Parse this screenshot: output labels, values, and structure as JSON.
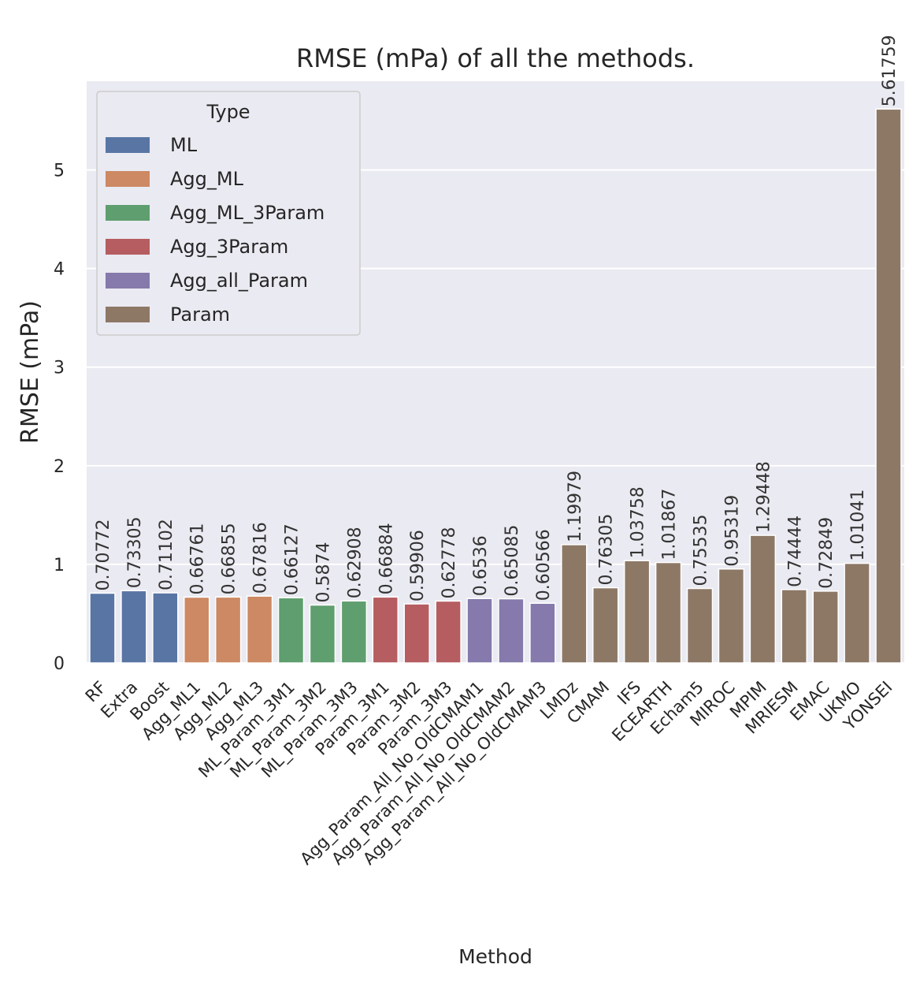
{
  "chart_data": {
    "type": "bar",
    "title": "RMSE (mPa) of all the methods.",
    "xlabel": "Method",
    "ylabel": "RMSE (mPa)",
    "ylim": [
      0,
      5.9
    ],
    "yticks": [
      0,
      1,
      2,
      3,
      4,
      5
    ],
    "grid": true,
    "legend": {
      "title": "Type",
      "placement": "top-left",
      "entries": [
        {
          "name": "ML",
          "color": "#5875a4"
        },
        {
          "name": "Agg_ML",
          "color": "#cc8963"
        },
        {
          "name": "Agg_ML_3Param",
          "color": "#5f9e6e"
        },
        {
          "name": "Agg_3Param",
          "color": "#b55d60"
        },
        {
          "name": "Agg_all_Param",
          "color": "#857aab"
        },
        {
          "name": "Param",
          "color": "#8d7866"
        }
      ]
    },
    "bars": [
      {
        "category": "RF",
        "value": 0.70772,
        "label": "0.70772",
        "type": "ML"
      },
      {
        "category": "Extra",
        "value": 0.73305,
        "label": "0.73305",
        "type": "ML"
      },
      {
        "category": "Boost",
        "value": 0.71102,
        "label": "0.71102",
        "type": "ML"
      },
      {
        "category": "Agg_ML1",
        "value": 0.66761,
        "label": "0.66761",
        "type": "Agg_ML"
      },
      {
        "category": "Agg_ML2",
        "value": 0.66855,
        "label": "0.66855",
        "type": "Agg_ML"
      },
      {
        "category": "Agg_ML3",
        "value": 0.67816,
        "label": "0.67816",
        "type": "Agg_ML"
      },
      {
        "category": "ML_Param_3M1",
        "value": 0.66127,
        "label": "0.66127",
        "type": "Agg_ML_3Param"
      },
      {
        "category": "ML_Param_3M2",
        "value": 0.5874,
        "label": "0.5874",
        "type": "Agg_ML_3Param"
      },
      {
        "category": "ML_Param_3M3",
        "value": 0.62908,
        "label": "0.62908",
        "type": "Agg_ML_3Param"
      },
      {
        "category": "Param_3M1",
        "value": 0.66884,
        "label": "0.66884",
        "type": "Agg_3Param"
      },
      {
        "category": "Param_3M2",
        "value": 0.59906,
        "label": "0.59906",
        "type": "Agg_3Param"
      },
      {
        "category": "Param_3M3",
        "value": 0.62778,
        "label": "0.62778",
        "type": "Agg_3Param"
      },
      {
        "category": "Agg_Param_All_No_OldCMAM1",
        "value": 0.6536,
        "label": "0.6536",
        "type": "Agg_all_Param"
      },
      {
        "category": "Agg_Param_All_No_OldCMAM2",
        "value": 0.65085,
        "label": "0.65085",
        "type": "Agg_all_Param"
      },
      {
        "category": "Agg_Param_All_No_OldCMAM3",
        "value": 0.60566,
        "label": "0.60566",
        "type": "Agg_all_Param"
      },
      {
        "category": "LMDz",
        "value": 1.19979,
        "label": "1.19979",
        "type": "Param"
      },
      {
        "category": "CMAM",
        "value": 0.76305,
        "label": "0.76305",
        "type": "Param"
      },
      {
        "category": "IFS",
        "value": 1.03758,
        "label": "1.03758",
        "type": "Param"
      },
      {
        "category": "ECEARTH",
        "value": 1.01867,
        "label": "1.01867",
        "type": "Param"
      },
      {
        "category": "Echam5",
        "value": 0.75535,
        "label": "0.75535",
        "type": "Param"
      },
      {
        "category": "MIROC",
        "value": 0.95319,
        "label": "0.95319",
        "type": "Param"
      },
      {
        "category": "MPIM",
        "value": 1.29448,
        "label": "1.29448",
        "type": "Param"
      },
      {
        "category": "MRIESM",
        "value": 0.74444,
        "label": "0.74444",
        "type": "Param"
      },
      {
        "category": "EMAC",
        "value": 0.72849,
        "label": "0.72849",
        "type": "Param"
      },
      {
        "category": "UKMO",
        "value": 1.01041,
        "label": "1.01041",
        "type": "Param"
      },
      {
        "category": "YONSEI",
        "value": 5.61759,
        "label": "5.61759",
        "type": "Param"
      }
    ]
  }
}
